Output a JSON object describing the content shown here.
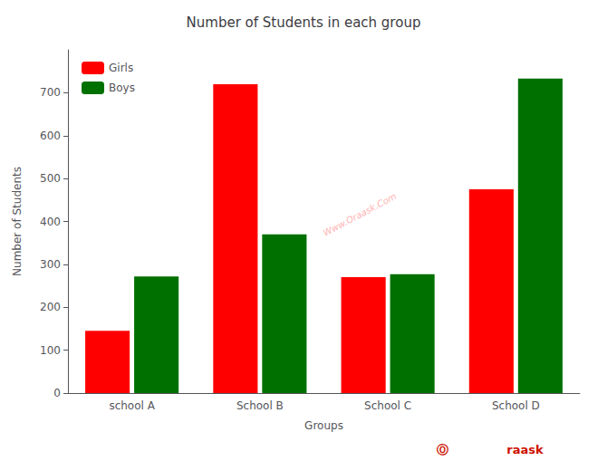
{
  "chart_data": {
    "type": "bar",
    "title": "Number of Students in each group",
    "xlabel": "Groups",
    "ylabel": "Number of Students",
    "categories": [
      "school A",
      "School B",
      "School C",
      "School D"
    ],
    "series": [
      {
        "name": "Girls",
        "color": "#ff0000",
        "values": [
          145,
          720,
          270,
          475
        ]
      },
      {
        "name": "Boys",
        "color": "#007000",
        "values": [
          272,
          370,
          277,
          733
        ]
      }
    ],
    "ylim": [
      0,
      800
    ],
    "yticks": [
      0,
      100,
      200,
      300,
      400,
      500,
      600,
      700
    ],
    "grid": false,
    "legend": "upper left",
    "annotations": [
      {
        "text": "Www.Oraask.Com",
        "color": "#ffb3b3"
      },
      {
        "text": "Ⓞ",
        "color": "#cc1100"
      },
      {
        "text": "raask",
        "color": "#cc1100"
      }
    ]
  }
}
